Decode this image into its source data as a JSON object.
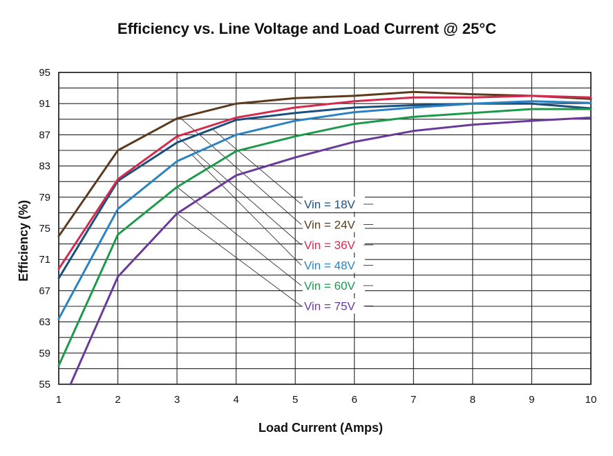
{
  "chart_data": {
    "type": "line",
    "title": "Efficiency vs. Line Voltage and Load Current @ 25°C",
    "xlabel": "Load Current (Amps)",
    "ylabel": "Efficiency (%)",
    "xlim": [
      1,
      10
    ],
    "ylim": [
      55,
      95
    ],
    "x_ticks": [
      1,
      2,
      3,
      4,
      5,
      6,
      7,
      8,
      9,
      10
    ],
    "y_ticks": [
      55,
      59,
      63,
      67,
      71,
      75,
      79,
      83,
      87,
      91,
      95
    ],
    "grid": true,
    "legend_position": "center",
    "series": [
      {
        "name": "Vin = 18V",
        "color": "#1a4f7f",
        "x": [
          1,
          2,
          3,
          4,
          5,
          6,
          7,
          8,
          9,
          10
        ],
        "y": [
          68.6,
          81.1,
          86.0,
          88.9,
          89.8,
          90.5,
          90.8,
          91.0,
          91.0,
          90.4
        ]
      },
      {
        "name": "Vin = 24V",
        "color": "#5c3a1e",
        "x": [
          1,
          2,
          3,
          4,
          5,
          6,
          7,
          8,
          9,
          10
        ],
        "y": [
          74.0,
          85.0,
          89.1,
          91.0,
          91.7,
          92.0,
          92.5,
          92.2,
          92.0,
          91.6
        ]
      },
      {
        "name": "Vin = 36V",
        "color": "#d42a4e",
        "x": [
          1,
          2,
          3,
          4,
          5,
          6,
          7,
          8,
          9,
          10
        ],
        "y": [
          69.8,
          81.3,
          86.8,
          89.2,
          90.5,
          91.3,
          91.8,
          91.8,
          92.0,
          91.8
        ]
      },
      {
        "name": "Vin = 48V",
        "color": "#2a82c2",
        "x": [
          1,
          2,
          3,
          4,
          5,
          6,
          7,
          8,
          9,
          10
        ],
        "y": [
          63.4,
          77.5,
          83.6,
          87.0,
          88.8,
          89.9,
          90.5,
          91.0,
          91.3,
          91.1
        ]
      },
      {
        "name": "Vin = 60V",
        "color": "#1b9a4a",
        "x": [
          1,
          2,
          3,
          4,
          5,
          6,
          7,
          8,
          9,
          10
        ],
        "y": [
          57.4,
          74.2,
          80.3,
          84.9,
          86.8,
          88.4,
          89.3,
          89.8,
          90.3,
          90.3
        ]
      },
      {
        "name": "Vin = 75V",
        "color": "#6a3a9a",
        "x": [
          1.2,
          2,
          3,
          4,
          5,
          6,
          7,
          8,
          9,
          10
        ],
        "y": [
          55.0,
          68.8,
          76.9,
          81.8,
          84.1,
          86.1,
          87.5,
          88.3,
          88.8,
          89.2
        ]
      }
    ]
  }
}
